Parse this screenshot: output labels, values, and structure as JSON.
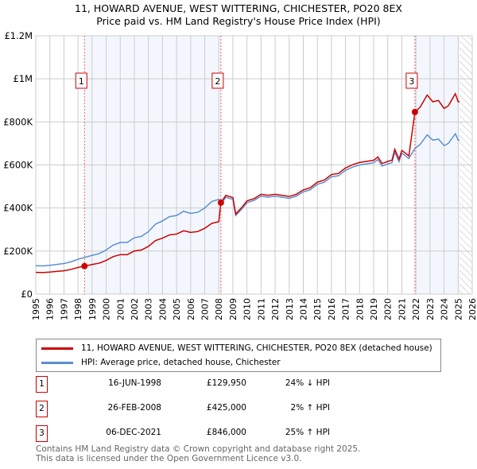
{
  "chart_data": {
    "type": "line",
    "title": "11, HOWARD AVENUE, WEST WITTERING, CHICHESTER, PO20 8EX",
    "subtitle": "Price paid vs. HM Land Registry's House Price Index (HPI)",
    "xlim": [
      1995,
      2026
    ],
    "ylim": [
      0,
      1200000
    ],
    "x_ticks": [
      "1995",
      "1996",
      "1997",
      "1998",
      "1999",
      "2000",
      "2001",
      "2002",
      "2003",
      "2004",
      "2005",
      "2006",
      "2007",
      "2008",
      "2009",
      "2010",
      "2011",
      "2012",
      "2013",
      "2014",
      "2015",
      "2016",
      "2017",
      "2018",
      "2019",
      "2020",
      "2021",
      "2022",
      "2023",
      "2024",
      "2025",
      "2026"
    ],
    "y_ticks": [
      {
        "v": 0,
        "label": "£0"
      },
      {
        "v": 200000,
        "label": "£200K"
      },
      {
        "v": 400000,
        "label": "£400K"
      },
      {
        "v": 600000,
        "label": "£600K"
      },
      {
        "v": 800000,
        "label": "£800K"
      },
      {
        "v": 1000000,
        "label": "£1M"
      },
      {
        "v": 1200000,
        "label": "£1.2M"
      }
    ],
    "grid": true,
    "forecast_from": 2025.1,
    "series": [
      {
        "name": "HPI: Average price, detached house, Chichester",
        "color": "#5b8fd1",
        "x": [
          1995,
          1995.5,
          1996,
          1996.5,
          1997,
          1997.5,
          1998,
          1998.46,
          1999,
          1999.5,
          2000,
          2000.5,
          2001,
          2001.5,
          2002,
          2002.5,
          2003,
          2003.5,
          2004,
          2004.5,
          2005,
          2005.5,
          2006,
          2006.5,
          2007,
          2007.5,
          2008,
          2008.15,
          2008.5,
          2009,
          2009.2,
          2009.7,
          2010,
          2010.5,
          2011,
          2011.5,
          2012,
          2012.5,
          2013,
          2013.5,
          2014,
          2014.5,
          2015,
          2015.5,
          2016,
          2016.5,
          2017,
          2017.5,
          2018,
          2018.5,
          2019,
          2019.3,
          2019.6,
          2020,
          2020.3,
          2020.5,
          2020.8,
          2021,
          2021.5,
          2021.93,
          2022.3,
          2022.8,
          2023.2,
          2023.6,
          2024,
          2024.3,
          2024.8,
          2025,
          2025.1
        ],
        "y": [
          132000,
          131000,
          134000,
          138000,
          142000,
          150000,
          162000,
          170000,
          180000,
          188000,
          205000,
          228000,
          240000,
          240000,
          262000,
          268000,
          290000,
          325000,
          340000,
          360000,
          365000,
          385000,
          375000,
          380000,
          400000,
          430000,
          440000,
          417000,
          450000,
          440000,
          365000,
          400000,
          425000,
          435000,
          455000,
          450000,
          455000,
          450000,
          445000,
          455000,
          475000,
          485000,
          510000,
          520000,
          545000,
          550000,
          575000,
          590000,
          600000,
          605000,
          610000,
          625000,
          595000,
          605000,
          610000,
          660000,
          615000,
          655000,
          630000,
          677000,
          695000,
          740000,
          715000,
          720000,
          690000,
          700000,
          745000,
          715000,
          715000
        ]
      },
      {
        "name": "11, HOWARD AVENUE, WEST WITTERING, CHICHESTER, PO20 8EX (detached house)",
        "color": "#cc0000",
        "derived_from_hpi_and_sales": true
      }
    ],
    "sales": [
      {
        "id": "1",
        "x": 1998.46,
        "price": 129950
      },
      {
        "id": "2",
        "x": 2008.15,
        "price": 425000
      },
      {
        "id": "3",
        "x": 2021.93,
        "price": 846000
      }
    ]
  },
  "legend": {
    "property": "11, HOWARD AVENUE, WEST WITTERING, CHICHESTER, PO20 8EX (detached house)",
    "hpi": "HPI: Average price, detached house, Chichester"
  },
  "transactions": [
    {
      "num": "1",
      "date": "16-JUN-1998",
      "price": "£129,950",
      "hpi": "24% ↓ HPI"
    },
    {
      "num": "2",
      "date": "26-FEB-2008",
      "price": "£425,000",
      "hpi": "2% ↑ HPI"
    },
    {
      "num": "3",
      "date": "06-DEC-2021",
      "price": "£846,000",
      "hpi": "25% ↑ HPI"
    }
  ],
  "footer": {
    "line1": "Contains HM Land Registry data © Crown copyright and database right 2025.",
    "line2": "This data is licensed under the Open Government Licence v3.0."
  }
}
